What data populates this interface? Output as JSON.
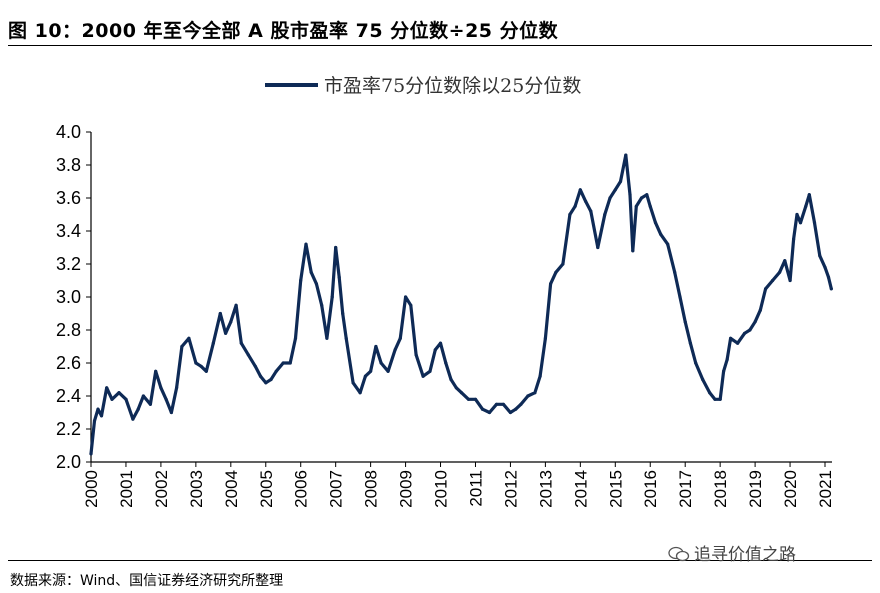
{
  "header": {
    "title": "图 10：2000 年至今全部 A 股市盈率 75 分位数÷25 分位数"
  },
  "footer": {
    "source": "数据来源：Wind、国信证券经济研究所整理",
    "watermark": "追寻价值之路"
  },
  "colors": {
    "series": "#0E2A56",
    "axis": "#000000"
  },
  "chart_data": {
    "type": "line",
    "title": "",
    "xlabel": "",
    "ylabel": "",
    "legend_position": "top-center",
    "grid": false,
    "ylim": [
      2.0,
      4.0
    ],
    "xlim": [
      2000,
      2021.2
    ],
    "y_ticks": [
      "4.0",
      "3.8",
      "3.6",
      "3.4",
      "3.2",
      "3.0",
      "2.8",
      "2.6",
      "2.4",
      "2.2",
      "2.0"
    ],
    "x_ticks": [
      "2000",
      "2001",
      "2002",
      "2003",
      "2004",
      "2005",
      "2006",
      "2007",
      "2008",
      "2009",
      "2010",
      "2011",
      "2012",
      "2013",
      "2014",
      "2015",
      "2016",
      "2017",
      "2018",
      "2019",
      "2020",
      "2021"
    ],
    "series": [
      {
        "name": "市盈率75分位数除以25分位数",
        "x": [
          2000.0,
          2000.1,
          2000.2,
          2000.3,
          2000.45,
          2000.6,
          2000.8,
          2001.0,
          2001.2,
          2001.35,
          2001.5,
          2001.7,
          2001.85,
          2002.0,
          2002.15,
          2002.3,
          2002.45,
          2002.6,
          2002.8,
          2003.0,
          2003.15,
          2003.3,
          2003.5,
          2003.7,
          2003.85,
          2004.0,
          2004.15,
          2004.3,
          2004.5,
          2004.7,
          2004.85,
          2005.0,
          2005.15,
          2005.3,
          2005.5,
          2005.7,
          2005.85,
          2006.0,
          2006.15,
          2006.3,
          2006.45,
          2006.6,
          2006.75,
          2006.9,
          2007.0,
          2007.1,
          2007.2,
          2007.3,
          2007.5,
          2007.7,
          2007.85,
          2008.0,
          2008.15,
          2008.3,
          2008.5,
          2008.7,
          2008.85,
          2009.0,
          2009.15,
          2009.3,
          2009.5,
          2009.7,
          2009.85,
          2010.0,
          2010.15,
          2010.3,
          2010.45,
          2010.6,
          2010.8,
          2011.0,
          2011.2,
          2011.4,
          2011.6,
          2011.8,
          2012.0,
          2012.15,
          2012.3,
          2012.5,
          2012.7,
          2012.85,
          2013.0,
          2013.15,
          2013.3,
          2013.5,
          2013.7,
          2013.85,
          2014.0,
          2014.15,
          2014.3,
          2014.5,
          2014.7,
          2014.85,
          2015.0,
          2015.15,
          2015.3,
          2015.42,
          2015.5,
          2015.6,
          2015.75,
          2015.9,
          2016.0,
          2016.15,
          2016.3,
          2016.5,
          2016.7,
          2016.85,
          2017.0,
          2017.15,
          2017.3,
          2017.5,
          2017.7,
          2017.85,
          2018.0,
          2018.1,
          2018.2,
          2018.3,
          2018.5,
          2018.7,
          2018.85,
          2019.0,
          2019.15,
          2019.3,
          2019.5,
          2019.7,
          2019.85,
          2020.0,
          2020.1,
          2020.2,
          2020.3,
          2020.45,
          2020.55,
          2020.7,
          2020.85,
          2021.0,
          2021.1,
          2021.18
        ],
        "values": [
          2.05,
          2.25,
          2.32,
          2.28,
          2.45,
          2.38,
          2.42,
          2.38,
          2.26,
          2.32,
          2.4,
          2.35,
          2.55,
          2.45,
          2.38,
          2.3,
          2.45,
          2.7,
          2.75,
          2.6,
          2.58,
          2.55,
          2.72,
          2.9,
          2.78,
          2.85,
          2.95,
          2.72,
          2.65,
          2.58,
          2.52,
          2.48,
          2.5,
          2.55,
          2.6,
          2.6,
          2.75,
          3.1,
          3.32,
          3.15,
          3.08,
          2.95,
          2.75,
          3.0,
          3.3,
          3.12,
          2.9,
          2.75,
          2.48,
          2.42,
          2.52,
          2.55,
          2.7,
          2.6,
          2.55,
          2.68,
          2.75,
          3.0,
          2.95,
          2.65,
          2.52,
          2.55,
          2.68,
          2.72,
          2.6,
          2.5,
          2.45,
          2.42,
          2.38,
          2.38,
          2.32,
          2.3,
          2.35,
          2.35,
          2.3,
          2.32,
          2.35,
          2.4,
          2.42,
          2.52,
          2.75,
          3.08,
          3.15,
          3.2,
          3.5,
          3.55,
          3.65,
          3.58,
          3.52,
          3.3,
          3.5,
          3.6,
          3.65,
          3.7,
          3.86,
          3.62,
          3.28,
          3.55,
          3.6,
          3.62,
          3.55,
          3.45,
          3.38,
          3.32,
          3.15,
          3.0,
          2.85,
          2.72,
          2.6,
          2.5,
          2.42,
          2.38,
          2.38,
          2.55,
          2.62,
          2.75,
          2.72,
          2.78,
          2.8,
          2.85,
          2.92,
          3.05,
          3.1,
          3.15,
          3.22,
          3.1,
          3.35,
          3.5,
          3.45,
          3.55,
          3.62,
          3.45,
          3.25,
          3.18,
          3.12,
          3.05
        ]
      }
    ]
  }
}
